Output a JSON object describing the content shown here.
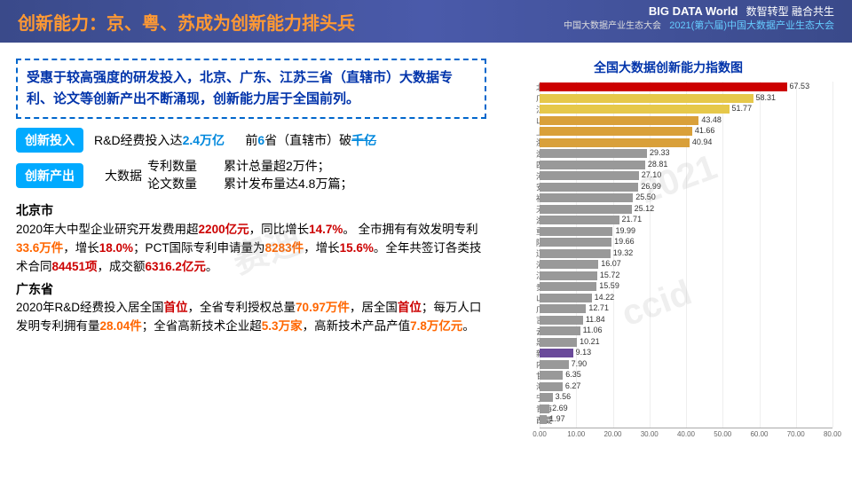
{
  "header": {
    "title": "创新能力：京、粤、苏成为创新能力排头兵",
    "logo": "BIG DATA World",
    "logo_sub": "中国大数据产业生态大会",
    "theme": "数智转型  融合共生",
    "event": "2021(第六届)中国大数据产业生态大会"
  },
  "intro": "受惠于较高强度的研发投入，北京、广东、江苏三省（直辖市）大数据专利、论文等创新产出不断涌现，创新能力居于全国前列。",
  "invest": {
    "tag": "创新投入",
    "t1a": "R&D经费投入达",
    "t1b": "2.4万亿",
    "t2a": "前",
    "t2b": "6",
    "t2c": "省（直辖市）破",
    "t2d": "千亿"
  },
  "output": {
    "tag": "创新产出",
    "label": "大数据",
    "c1a": "专利数量",
    "c1b": "论文数量",
    "c2a": "累计总量超2万件；",
    "c2b": "累计发布量达4.8万篇；"
  },
  "bj": {
    "title": "北京市",
    "l1a": "2020年大中型企业研究开发费用超",
    "l1b": "2200亿元",
    "l1c": "，同比增长",
    "l1d": "14.7%",
    "l1e": "。",
    "l2a": "全市拥有有效发明专利",
    "l2b": "33.6万件",
    "l2c": "，增长",
    "l2d": "18.0%",
    "l2e": "；PCT国际专利申请量为",
    "l2f": "8283件",
    "l2g": "，增长",
    "l2h": "15.6%",
    "l2i": "。全年共签订各类技术合同",
    "l2j": "84451项",
    "l2k": "，成交额",
    "l2l": "6316.2亿元",
    "l2m": "。"
  },
  "gd": {
    "title": "广东省",
    "l1a": "2020年R&D经费投入居全国",
    "l1b": "首位",
    "l1c": "，全省专利授权总量",
    "l1d": "70.97万件",
    "l1e": "，居全国",
    "l1f": "首位",
    "l1g": "；每万人口发明专利拥有量",
    "l1h": "28.04件",
    "l1i": "；全省高新技术企业超",
    "l1j": "5.3万家",
    "l1k": "，高新技术产品产值",
    "l1l": "7.8万亿元",
    "l1m": "。"
  },
  "chart": {
    "title": "全国大数据创新能力指数图",
    "xmax": 80,
    "xticks": [
      0,
      10,
      20,
      30,
      40,
      50,
      60,
      70,
      80
    ],
    "bars": [
      {
        "label": "北京",
        "value": 67.53,
        "color": "#cc0000"
      },
      {
        "label": "广东",
        "value": 58.31,
        "color": "#e6c84a"
      },
      {
        "label": "江苏",
        "value": 51.77,
        "color": "#e6c84a"
      },
      {
        "label": "山东",
        "value": 43.48,
        "color": "#d9a03a"
      },
      {
        "label": "上海",
        "value": 41.66,
        "color": "#d9a03a"
      },
      {
        "label": "浙江",
        "value": 40.94,
        "color": "#d9a03a"
      },
      {
        "label": "湖北",
        "value": 29.33,
        "color": "#999999"
      },
      {
        "label": "四川",
        "value": 28.81,
        "color": "#999999"
      },
      {
        "label": "河南",
        "value": 27.1,
        "color": "#999999"
      },
      {
        "label": "安徽",
        "value": 26.99,
        "color": "#999999"
      },
      {
        "label": "福建",
        "value": 25.5,
        "color": "#999999"
      },
      {
        "label": "天津",
        "value": 25.12,
        "color": "#999999"
      },
      {
        "label": "湖南",
        "value": 21.71,
        "color": "#999999"
      },
      {
        "label": "重庆",
        "value": 19.99,
        "color": "#999999"
      },
      {
        "label": "陕西",
        "value": 19.66,
        "color": "#999999"
      },
      {
        "label": "辽宁",
        "value": 19.32,
        "color": "#999999"
      },
      {
        "label": "河北",
        "value": 16.07,
        "color": "#999999"
      },
      {
        "label": "江西",
        "value": 15.72,
        "color": "#999999"
      },
      {
        "label": "贵州",
        "value": 15.59,
        "color": "#999999"
      },
      {
        "label": "山西",
        "value": 14.22,
        "color": "#999999"
      },
      {
        "label": "广西",
        "value": 12.71,
        "color": "#999999"
      },
      {
        "label": "吉林",
        "value": 11.84,
        "color": "#999999"
      },
      {
        "label": "云南",
        "value": 11.06,
        "color": "#999999"
      },
      {
        "label": "黑龙江",
        "value": 10.21,
        "color": "#999999"
      },
      {
        "label": "新疆",
        "value": 9.13,
        "color": "#6a4a9a"
      },
      {
        "label": "内蒙古",
        "value": 7.9,
        "color": "#999999"
      },
      {
        "label": "甘肃",
        "value": 6.35,
        "color": "#999999"
      },
      {
        "label": "海南",
        "value": 6.27,
        "color": "#999999"
      },
      {
        "label": "宁夏",
        "value": 3.56,
        "color": "#999999"
      },
      {
        "label": "青海",
        "value": 2.69,
        "color": "#999999"
      },
      {
        "label": "西藏",
        "value": 1.97,
        "color": "#999999"
      }
    ]
  },
  "watermarks": [
    "赛迪",
    "ccid",
    "2021"
  ]
}
